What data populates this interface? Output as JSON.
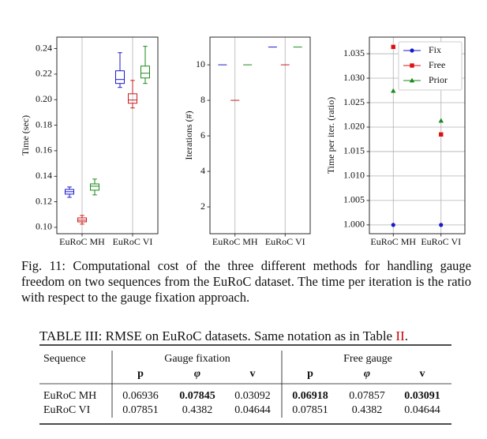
{
  "chart_data": [
    {
      "type": "box",
      "ylabel": "Time (sec)",
      "categories": [
        "EuRoC MH",
        "EuRoC VI"
      ],
      "series": [
        {
          "color": "#1a1acc",
          "values": [
            [
              0.1235,
              0.126,
              0.1279,
              0.1297,
              0.1316
            ],
            [
              0.2096,
              0.2127,
              0.2158,
              0.2226,
              0.2368
            ]
          ]
        },
        {
          "color": "#cc1a1a",
          "values": [
            [
              0.1025,
              0.1043,
              0.1056,
              0.1074,
              0.1093
            ],
            [
              0.1935,
              0.1972,
              0.1997,
              0.2046,
              0.2151
            ]
          ]
        },
        {
          "color": "#1a8a1a",
          "values": [
            [
              0.1254,
              0.1291,
              0.1322,
              0.134,
              0.1378
            ],
            [
              0.2127,
              0.217,
              0.2207,
              0.2263,
              0.2418
            ]
          ]
        }
      ],
      "ylim": [
        0.095,
        0.249
      ],
      "yticks": [
        {
          "value": 0.1,
          "label": "0.10"
        },
        0.12,
        0.14,
        0.16,
        0.18,
        {
          "value": 0.2,
          "label": "0.20"
        },
        0.22,
        0.24
      ],
      "grid": "x"
    },
    {
      "type": "box",
      "ylabel": "Iterations (#)",
      "categories": [
        "EuRoC MH",
        "EuRoC VI"
      ],
      "series": [
        {
          "color": "#1a1acc",
          "values": [
            10,
            11
          ]
        },
        {
          "color": "#cc1a1a",
          "values": [
            8,
            10
          ]
        },
        {
          "color": "#1a8a1a",
          "values": [
            10,
            11
          ]
        }
      ],
      "ylim": [
        0.49,
        11.56
      ],
      "yticks": [
        2,
        4,
        6,
        8,
        10
      ],
      "grid": "x"
    },
    {
      "type": "dot",
      "ylabel": "Time per iter. (ratio)",
      "categories": [
        "EuRoC MH",
        "EuRoC VI"
      ],
      "series": [
        {
          "name": "Fix",
          "color": "#1a1acc",
          "marker": "circle",
          "values": [
            1.0,
            1.0
          ]
        },
        {
          "name": "Free",
          "color": "#dd1111",
          "marker": "square",
          "values": [
            1.0364,
            1.0185
          ]
        },
        {
          "name": "Prior",
          "color": "#1a8a1a",
          "marker": "triangle",
          "values": [
            1.0274,
            1.0213
          ]
        }
      ],
      "ylim": [
        0.9982,
        1.0384
      ],
      "yticks": [
        {
          "value": 1.0,
          "label": "1.000"
        },
        1.005,
        {
          "value": 1.01,
          "label": "1.010"
        },
        1.015,
        {
          "value": 1.02,
          "label": "1.020"
        },
        1.025,
        {
          "value": 1.03,
          "label": "1.030"
        },
        1.035
      ],
      "grid": "both",
      "legend": "upper right"
    }
  ],
  "caption": "Fig. 11: Computational cost of the three different methods for handling gauge freedom on two sequences from the EuRoC dataset. The time per iteration is the ratio with respect to the gauge fixation approach.",
  "table": {
    "title_parts": [
      "TABLE III: RMSE on EuRoC datasets. Same notation as in Table ",
      "II",
      "."
    ],
    "group_headers": [
      "Gauge fixation",
      "Free gauge"
    ],
    "columns": [
      "Sequence",
      "p",
      "φ",
      "v",
      "p",
      "φ",
      "v"
    ],
    "rows": [
      [
        "EuRoC MH",
        "0.06936",
        "0.07845",
        "0.03092",
        "0.06918",
        "0.07857",
        "0.03091"
      ],
      [
        "EuRoC VI",
        "0.07851",
        "0.4382",
        "0.04644",
        "0.07851",
        "0.4382",
        "0.04644"
      ]
    ],
    "bold_cells": [
      [
        0,
        2
      ],
      [
        0,
        4
      ],
      [
        0,
        6
      ]
    ]
  }
}
